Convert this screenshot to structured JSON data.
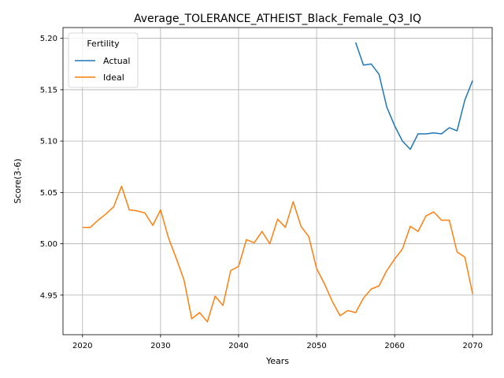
{
  "chart_data": {
    "type": "line",
    "title": "Average_TOLERANCE_ATHEIST_Black_Female_Q3_IQ",
    "xlabel": "Years",
    "ylabel": "Score(3-6)",
    "xlim": [
      2017.5,
      2072.5
    ],
    "ylim": [
      4.9115,
      5.2105
    ],
    "xticks": [
      2020,
      2030,
      2040,
      2050,
      2060,
      2070
    ],
    "xtick_labels": [
      "2020",
      "2030",
      "2040",
      "2050",
      "2060",
      "2070"
    ],
    "yticks": [
      4.95,
      5.0,
      5.05,
      5.1,
      5.15,
      5.2
    ],
    "ytick_labels": [
      "4.95",
      "5.00",
      "5.05",
      "5.10",
      "5.15",
      "5.20"
    ],
    "grid": true,
    "legend": {
      "title": "Fertility",
      "placement": "top-left"
    },
    "series": [
      {
        "name": "Actual",
        "color": "#1f77b4",
        "x": [
          2055,
          2056,
          2057,
          2058,
          2059,
          2060,
          2061,
          2062,
          2063,
          2064,
          2065,
          2066,
          2067,
          2068,
          2069,
          2070
        ],
        "y": [
          5.196,
          5.174,
          5.175,
          5.165,
          5.133,
          5.115,
          5.1,
          5.092,
          5.107,
          5.107,
          5.108,
          5.107,
          5.113,
          5.11,
          5.14,
          5.159
        ]
      },
      {
        "name": "Ideal",
        "color": "#ff7f0e",
        "x": [
          2020,
          2021,
          2022,
          2023,
          2024,
          2025,
          2026,
          2027,
          2028,
          2029,
          2030,
          2031,
          2032,
          2033,
          2034,
          2035,
          2036,
          2037,
          2038,
          2039,
          2040,
          2041,
          2042,
          2043,
          2044,
          2045,
          2046,
          2047,
          2048,
          2049,
          2050,
          2051,
          2052,
          2053,
          2054,
          2055,
          2056,
          2057,
          2058,
          2059,
          2060,
          2061,
          2062,
          2063,
          2064,
          2065,
          2066,
          2067,
          2068,
          2069,
          2070
        ],
        "y": [
          5.016,
          5.016,
          5.023,
          5.029,
          5.036,
          5.056,
          5.033,
          5.032,
          5.03,
          5.018,
          5.033,
          5.006,
          4.986,
          4.965,
          4.927,
          4.933,
          4.924,
          4.949,
          4.94,
          4.974,
          4.978,
          5.004,
          5.001,
          5.012,
          5.0,
          5.024,
          5.016,
          5.041,
          5.017,
          5.007,
          4.976,
          4.961,
          4.944,
          4.93,
          4.935,
          4.933,
          4.947,
          4.956,
          4.959,
          4.974,
          4.985,
          4.995,
          5.017,
          5.012,
          5.027,
          5.031,
          5.023,
          5.023,
          4.992,
          4.987,
          4.951
        ]
      }
    ]
  }
}
